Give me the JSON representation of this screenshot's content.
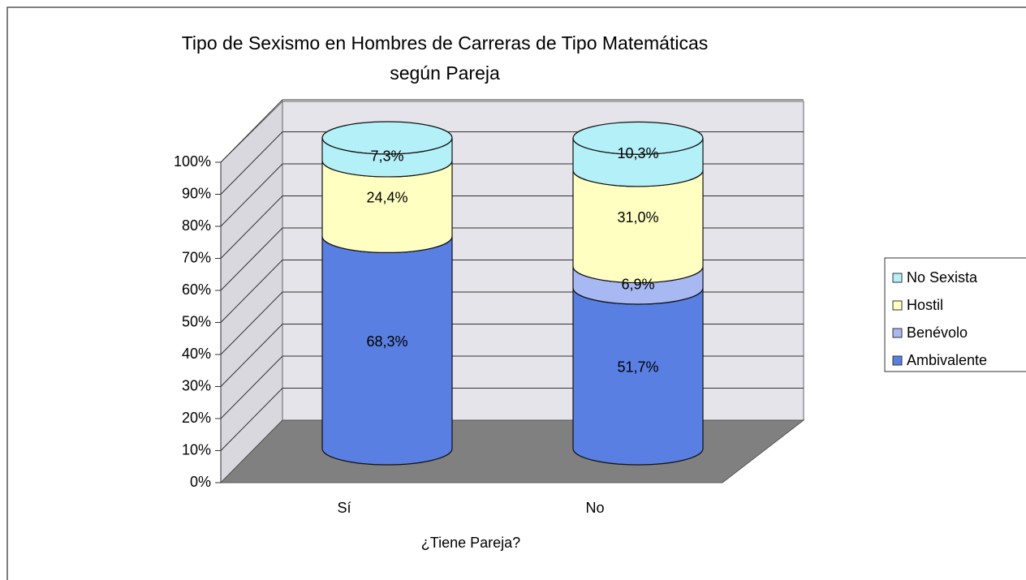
{
  "chart_data": {
    "type": "stacked_cylinder",
    "title": [
      "Tipo de Sexismo en Hombres de Carreras de Tipo Matemáticas",
      "según Pareja"
    ],
    "x_label": "¿Tiene Pareja?",
    "categories": [
      "Sí",
      "No"
    ],
    "series": [
      {
        "name": "Ambivalente",
        "color": "#5a7fe2",
        "values": [
          68.3,
          51.7
        ],
        "value_labels": [
          "68,3%",
          "51,7%"
        ]
      },
      {
        "name": "Benévolo",
        "color": "#a8b8f2",
        "values": [
          0,
          6.9
        ],
        "value_labels": [
          null,
          "6,9%"
        ]
      },
      {
        "name": "Hostil",
        "color": "#ffffc2",
        "values": [
          24.4,
          31.0
        ],
        "value_labels": [
          "24,4%",
          "31,0%"
        ]
      },
      {
        "name": "No Sexista",
        "color": "#b4f0f8",
        "values": [
          7.3,
          10.3
        ],
        "value_labels": [
          "7,3%",
          "10,3%"
        ]
      }
    ],
    "ylim": [
      0,
      100
    ],
    "yticks": [
      {
        "value": 0,
        "label": "0%"
      },
      {
        "value": 10,
        "label": "10%"
      },
      {
        "value": 20,
        "label": "20%"
      },
      {
        "value": 30,
        "label": "30%"
      },
      {
        "value": 40,
        "label": "40%"
      },
      {
        "value": 50,
        "label": "50%"
      },
      {
        "value": 60,
        "label": "60%"
      },
      {
        "value": 70,
        "label": "70%"
      },
      {
        "value": 80,
        "label": "80%"
      },
      {
        "value": 90,
        "label": "90%"
      },
      {
        "value": 100,
        "label": "100%"
      }
    ],
    "grid": true,
    "legend": "right"
  }
}
